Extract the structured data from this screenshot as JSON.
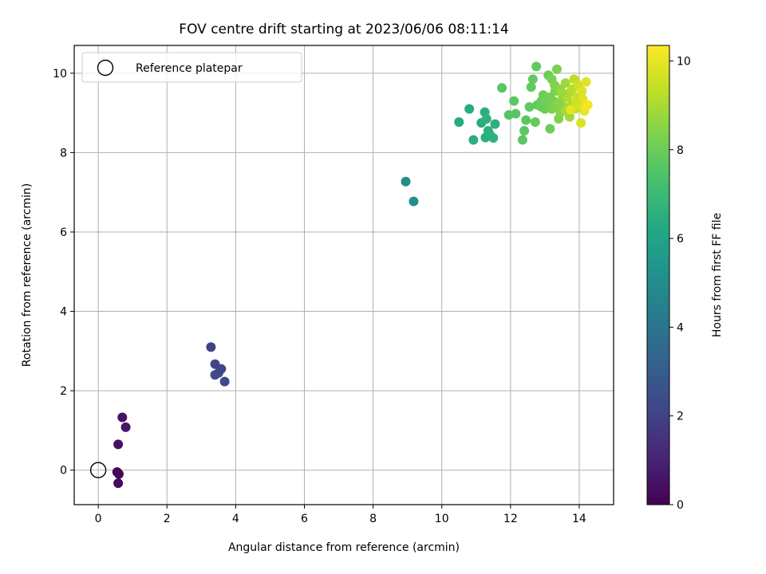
{
  "chart_data": {
    "type": "scatter",
    "title": "FOV centre drift starting at 2023/06/06 08:11:14",
    "xlabel": "Angular distance from reference (arcmin)",
    "ylabel": "Rotation from reference (arcmin)",
    "xlim": [
      -0.7,
      15.0
    ],
    "ylim": [
      -0.87,
      10.7
    ],
    "xticks": [
      0,
      2,
      4,
      6,
      8,
      10,
      12,
      14
    ],
    "yticks": [
      0,
      2,
      4,
      6,
      8,
      10
    ],
    "grid": true,
    "legend": {
      "position": "top-left",
      "entries": [
        "Reference platepar"
      ]
    },
    "reference_point": {
      "name": "Reference platepar",
      "x": 0,
      "y": 0,
      "marker": "hollow-circle"
    },
    "colorbar": {
      "label": "Hours from first FF file",
      "range": [
        0,
        10.35
      ],
      "ticks": [
        0,
        2,
        4,
        6,
        8,
        10
      ],
      "colormap": "viridis"
    },
    "points": [
      [
        0.55,
        -0.05,
        0.1
      ],
      [
        0.6,
        -0.1,
        0.2
      ],
      [
        0.58,
        -0.33,
        0.3
      ],
      [
        0.58,
        0.65,
        0.4
      ],
      [
        0.7,
        1.33,
        0.5
      ],
      [
        0.8,
        1.08,
        0.6
      ],
      [
        3.28,
        3.1,
        2.0
      ],
      [
        3.4,
        2.67,
        2.1
      ],
      [
        3.5,
        2.45,
        2.2
      ],
      [
        3.58,
        2.55,
        2.15
      ],
      [
        3.4,
        2.4,
        2.25
      ],
      [
        3.68,
        2.23,
        2.3
      ],
      [
        8.95,
        7.27,
        5.0
      ],
      [
        9.18,
        6.77,
        5.1
      ],
      [
        10.5,
        8.77,
        6.3
      ],
      [
        10.8,
        9.1,
        6.4
      ],
      [
        10.92,
        8.32,
        6.5
      ],
      [
        11.15,
        8.75,
        6.4
      ],
      [
        11.25,
        9.02,
        6.5
      ],
      [
        11.3,
        8.85,
        6.6
      ],
      [
        11.27,
        8.38,
        6.5
      ],
      [
        11.4,
        8.45,
        6.6
      ],
      [
        11.5,
        8.37,
        6.6
      ],
      [
        11.55,
        8.72,
        6.5
      ],
      [
        11.35,
        8.55,
        6.55
      ],
      [
        11.75,
        9.63,
        7.6
      ],
      [
        11.95,
        8.95,
        7.6
      ],
      [
        12.1,
        9.3,
        7.7
      ],
      [
        12.15,
        8.98,
        7.6
      ],
      [
        12.35,
        8.32,
        7.7
      ],
      [
        12.4,
        8.55,
        7.7
      ],
      [
        12.45,
        8.82,
        7.7
      ],
      [
        12.55,
        9.15,
        7.8
      ],
      [
        12.6,
        9.65,
        7.8
      ],
      [
        12.65,
        9.85,
        7.8
      ],
      [
        12.72,
        8.77,
        7.9
      ],
      [
        12.75,
        10.17,
        7.8
      ],
      [
        12.78,
        9.2,
        7.8
      ],
      [
        12.9,
        9.3,
        7.9
      ],
      [
        12.95,
        9.45,
        8.0
      ],
      [
        13.0,
        9.1,
        8.0
      ],
      [
        13.1,
        9.95,
        8.0
      ],
      [
        13.15,
        8.6,
        8.0
      ],
      [
        13.2,
        9.85,
        8.2
      ],
      [
        13.25,
        9.3,
        8.3
      ],
      [
        13.3,
        9.55,
        8.3
      ],
      [
        13.35,
        10.1,
        8.3
      ],
      [
        13.4,
        8.85,
        8.4
      ],
      [
        13.45,
        9.0,
        8.5
      ],
      [
        13.05,
        9.25,
        8.1
      ],
      [
        13.15,
        9.4,
        8.2
      ],
      [
        13.28,
        9.7,
        8.4
      ],
      [
        13.35,
        9.2,
        8.4
      ],
      [
        13.45,
        9.6,
        8.6
      ],
      [
        13.5,
        9.35,
        8.7
      ],
      [
        13.55,
        9.15,
        8.8
      ],
      [
        13.6,
        9.75,
        8.8
      ],
      [
        13.62,
        9.05,
        8.9
      ],
      [
        13.7,
        9.5,
        9.0
      ],
      [
        13.72,
        8.9,
        8.9
      ],
      [
        13.78,
        9.25,
        9.1
      ],
      [
        13.8,
        9.6,
        9.2
      ],
      [
        13.85,
        9.85,
        9.3
      ],
      [
        13.88,
        9.1,
        9.4
      ],
      [
        13.95,
        9.4,
        9.5
      ],
      [
        13.98,
        9.7,
        9.6
      ],
      [
        14.0,
        9.2,
        9.7
      ],
      [
        14.05,
        8.75,
        9.8
      ],
      [
        14.1,
        9.35,
        9.9
      ],
      [
        14.15,
        9.05,
        10.0
      ],
      [
        14.18,
        9.15,
        10.1
      ],
      [
        14.2,
        9.78,
        9.9
      ],
      [
        14.25,
        9.2,
        10.2
      ],
      [
        13.75,
        9.08,
        10.0
      ],
      [
        14.08,
        9.55,
        9.8
      ],
      [
        13.9,
        9.3,
        9.6
      ],
      [
        13.65,
        9.4,
        9.1
      ],
      [
        13.5,
        9.5,
        8.8
      ],
      [
        13.4,
        9.2,
        8.5
      ],
      [
        13.2,
        9.1,
        8.3
      ],
      [
        13.0,
        9.35,
        8.1
      ],
      [
        12.9,
        9.15,
        8.0
      ]
    ]
  }
}
